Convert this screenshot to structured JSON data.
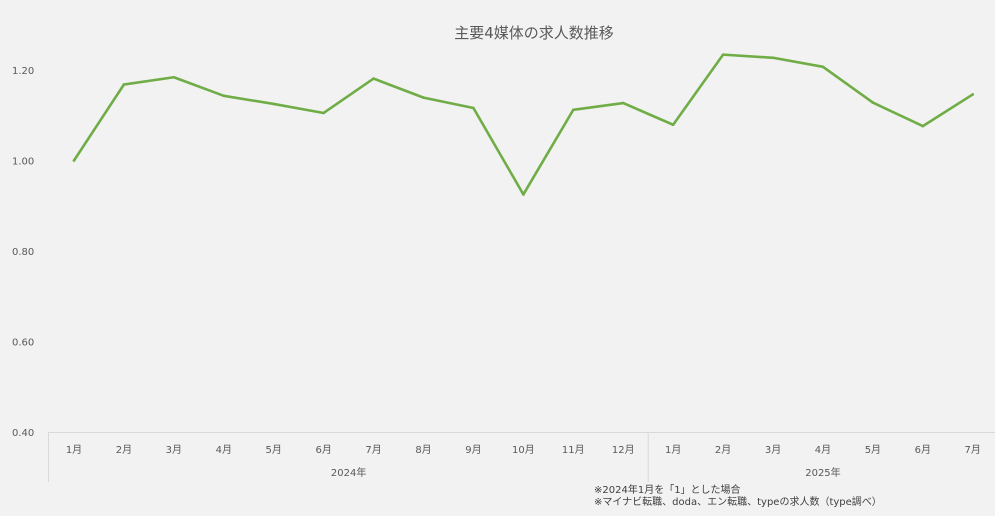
{
  "chart_data": {
    "type": "line",
    "title": "主要4媒体の求人数推移",
    "x": [
      "1月",
      "2月",
      "3月",
      "4月",
      "5月",
      "6月",
      "7月",
      "8月",
      "9月",
      "10月",
      "11月",
      "12月",
      "1月",
      "2月",
      "3月",
      "4月",
      "5月",
      "6月",
      "7月"
    ],
    "year_groups": [
      {
        "label": "2024年",
        "count": 12
      },
      {
        "label": "2025年",
        "count": 7
      }
    ],
    "series": [
      {
        "values": [
          1.0,
          1.168,
          1.184,
          1.143,
          1.125,
          1.105,
          1.181,
          1.139,
          1.116,
          0.925,
          1.112,
          1.127,
          1.079,
          1.234,
          1.227,
          1.207,
          1.128,
          1.076,
          1.146
        ],
        "color": "#70ad47"
      }
    ],
    "yticks": [
      "0.40",
      "0.60",
      "0.80",
      "1.00",
      "1.20"
    ],
    "ylim": [
      0.4,
      1.3
    ],
    "grid": false,
    "legend": "none"
  },
  "notes": {
    "line1": "※2024年1月を「1」とした場合",
    "line2": "※マイナビ転職、doda、エン転職、typeの求人数（type調べ）"
  }
}
